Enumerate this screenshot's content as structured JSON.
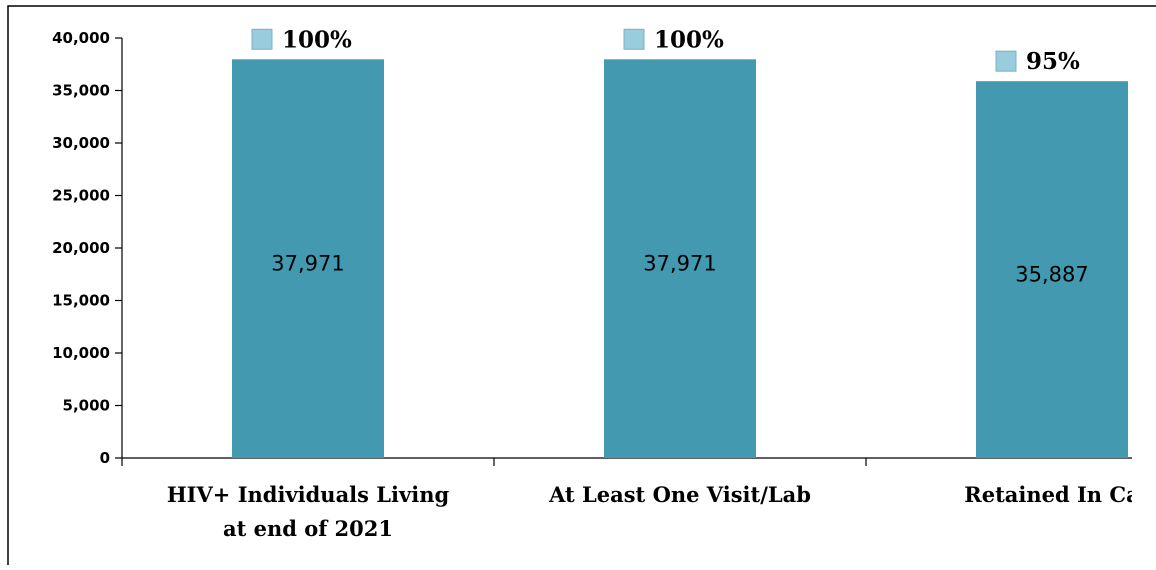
{
  "colors": {
    "bar": "#4299B0",
    "marker": "#99CCDD",
    "marker_border": "#7FAFC0",
    "axis": "#000000",
    "frame": "#000000"
  },
  "chart_data": {
    "type": "bar",
    "categories": [
      [
        "HIV+ Individuals Living",
        "at end of 2021"
      ],
      [
        "At Least One Visit/Lab"
      ],
      [
        "Retained In Ca"
      ]
    ],
    "values": [
      37971,
      37971,
      35887
    ],
    "value_labels": [
      "37,971",
      "37,971",
      "35,887"
    ],
    "percent_labels": [
      "100%",
      "100%",
      "95%"
    ],
    "ylim": [
      0,
      40000
    ],
    "yticks": [
      0,
      5000,
      10000,
      15000,
      20000,
      25000,
      30000,
      35000,
      40000
    ],
    "ytick_labels": [
      "0",
      "5,000",
      "10,000",
      "15,000",
      "20,000",
      "25,000",
      "30,000",
      "35,000",
      "40,000"
    ],
    "grid": false,
    "title": "",
    "xlabel": "",
    "ylabel": ""
  }
}
